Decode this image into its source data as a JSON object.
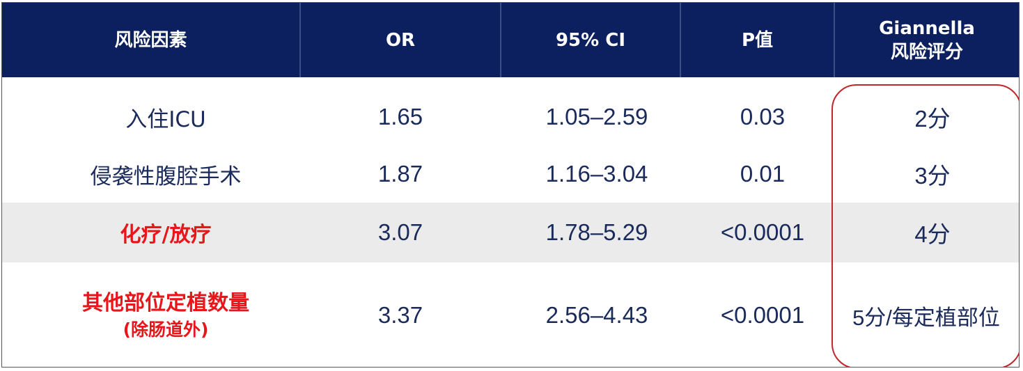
{
  "table": {
    "headers": [
      {
        "line1": "风险因素",
        "line2": ""
      },
      {
        "line1": "OR",
        "line2": ""
      },
      {
        "line1": "95% CI",
        "line2": ""
      },
      {
        "line1": "P值",
        "line2": ""
      },
      {
        "line1": "Giannella",
        "line2": "风险评分"
      }
    ],
    "rows": [
      {
        "factor": "入住ICU",
        "factor_note": "",
        "or": "1.65",
        "ci": "1.05–2.59",
        "p": "0.03",
        "score": "2分"
      },
      {
        "factor": "侵袭性腹腔手术",
        "factor_note": "",
        "or": "1.87",
        "ci": "1.16–3.04",
        "p": "0.01",
        "score": "3分"
      },
      {
        "factor": "化疗/放疗",
        "factor_note": "",
        "or": "3.07",
        "ci": "1.78–5.29",
        "p": "<0.0001",
        "score": "4分"
      },
      {
        "factor": "其他部位定植数量",
        "factor_note": "(除肠道外)",
        "or": "3.37",
        "ci": "2.56–4.43",
        "p": "<0.0001",
        "score": "5分/每定植部位"
      }
    ]
  },
  "colors": {
    "header_bg": "#0c1f5e",
    "body_text": "#1a2a5a",
    "highlight_text": "#e8161b",
    "shaded_row": "#ebebeb",
    "score_outline": "#c0262a"
  }
}
